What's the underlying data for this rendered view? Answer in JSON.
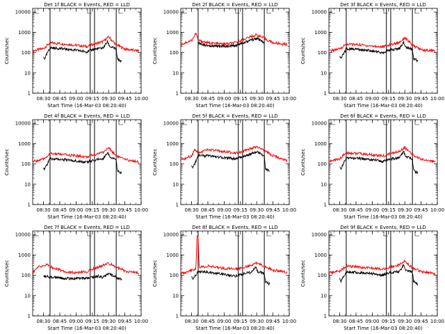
{
  "chart_data": [
    {
      "type": "line",
      "title": "Det 1f BLACK = Events, RED = LLD",
      "xlabel": "Start Time (16-Mar-03 08:20:40)",
      "ylabel": "Counts/sec",
      "xlim": [
        "08:20",
        "10:00"
      ],
      "ylim": [
        1,
        15000
      ],
      "yscale": "log",
      "x_ticks": [
        "08:30",
        "08:45",
        "09:00",
        "09:15",
        "09:30",
        "09:45",
        "10:00"
      ],
      "y_ticks": [
        "1",
        "10",
        "100",
        "1000",
        "10000"
      ],
      "vlines": [
        "08:36",
        "09:13",
        "09:17",
        "09:37"
      ],
      "series": [
        {
          "color": "#ff0000",
          "x": [
            "08:20",
            "08:30",
            "08:36",
            "08:45",
            "09:00",
            "09:10",
            "09:15",
            "09:25",
            "09:30",
            "09:33",
            "09:37",
            "09:45",
            "09:58"
          ],
          "values": [
            120,
            160,
            300,
            280,
            230,
            200,
            250,
            350,
            600,
            400,
            250,
            150,
            120
          ]
        },
        {
          "color": "#000000",
          "x": [
            "08:30",
            "08:31",
            "08:36",
            "08:45",
            "09:00",
            "09:10",
            "09:15",
            "09:25",
            "09:29",
            "09:31",
            "09:37",
            "09:38",
            "09:42"
          ],
          "values": [
            60,
            50,
            170,
            160,
            130,
            110,
            140,
            170,
            350,
            200,
            150,
            50,
            35
          ]
        }
      ]
    },
    {
      "type": "line",
      "title": "Det 2f BLACK = Events, RED = LLD",
      "xlabel": "Start Time (16-Mar-03 08:20:40)",
      "ylabel": "Counts/sec",
      "xlim": [
        "08:20",
        "10:00"
      ],
      "ylim": [
        1,
        15000
      ],
      "yscale": "log",
      "x_ticks": [
        "08:30",
        "08:45",
        "09:00",
        "09:15",
        "09:30",
        "09:45",
        "10:00"
      ],
      "y_ticks": [
        "1",
        "10",
        "100",
        "1000",
        "10000"
      ],
      "vlines": [
        "08:36",
        "09:13",
        "09:17",
        "09:37"
      ],
      "series": [
        {
          "color": "#ff0000",
          "x": [
            "08:20",
            "08:30",
            "08:34",
            "08:36",
            "08:45",
            "09:00",
            "09:10",
            "09:20",
            "09:30",
            "09:37",
            "09:45",
            "09:58"
          ],
          "values": [
            250,
            400,
            900,
            400,
            300,
            260,
            300,
            500,
            750,
            500,
            300,
            250
          ]
        },
        {
          "color": "#000000",
          "x": [
            "08:36",
            "08:45",
            "09:00",
            "09:10",
            "09:20",
            "09:30",
            "09:37"
          ],
          "values": [
            300,
            220,
            200,
            220,
            350,
            500,
            300
          ]
        }
      ]
    },
    {
      "type": "line",
      "title": "Det 3f BLACK = Events, RED = LLD",
      "xlabel": "Start Time (16-Mar-03 08:20:40)",
      "ylabel": "Counts/sec",
      "xlim": [
        "08:20",
        "10:00"
      ],
      "ylim": [
        1,
        15000
      ],
      "yscale": "log",
      "x_ticks": [
        "08:30",
        "08:45",
        "09:00",
        "09:15",
        "09:30",
        "09:45",
        "10:00"
      ],
      "y_ticks": [
        "1",
        "10",
        "100",
        "1000",
        "10000"
      ],
      "vlines": [
        "08:36",
        "09:13",
        "09:17",
        "09:37"
      ],
      "series": [
        {
          "color": "#ff0000",
          "x": [
            "08:20",
            "08:30",
            "08:36",
            "08:45",
            "09:00",
            "09:10",
            "09:15",
            "09:25",
            "09:30",
            "09:33",
            "09:37",
            "09:45",
            "09:58"
          ],
          "values": [
            120,
            150,
            260,
            250,
            210,
            190,
            230,
            320,
            550,
            380,
            230,
            140,
            120
          ]
        },
        {
          "color": "#000000",
          "x": [
            "08:30",
            "08:31",
            "08:36",
            "08:45",
            "09:00",
            "09:10",
            "09:15",
            "09:25",
            "09:29",
            "09:31",
            "09:37",
            "09:38",
            "09:42"
          ],
          "values": [
            60,
            50,
            150,
            150,
            120,
            100,
            130,
            160,
            330,
            190,
            140,
            50,
            40
          ]
        }
      ]
    },
    {
      "type": "line",
      "title": "Det 4f BLACK = Events, RED = LLD",
      "xlabel": "Start Time (16-Mar-03 08:20:40)",
      "ylabel": "Counts/sec",
      "xlim": [
        "08:20",
        "10:00"
      ],
      "ylim": [
        1,
        15000
      ],
      "yscale": "log",
      "x_ticks": [
        "08:30",
        "08:45",
        "09:00",
        "09:15",
        "09:30",
        "09:45",
        "10:00"
      ],
      "y_ticks": [
        "1",
        "10",
        "100",
        "1000",
        "10000"
      ],
      "vlines": [
        "08:36",
        "09:13",
        "09:17",
        "09:37"
      ],
      "series": [
        {
          "color": "#ff0000",
          "x": [
            "08:20",
            "08:30",
            "08:36",
            "08:45",
            "09:00",
            "09:10",
            "09:15",
            "09:25",
            "09:30",
            "09:33",
            "09:37",
            "09:45",
            "09:58"
          ],
          "values": [
            130,
            170,
            320,
            300,
            250,
            220,
            270,
            380,
            620,
            420,
            260,
            160,
            130
          ]
        },
        {
          "color": "#000000",
          "x": [
            "08:30",
            "08:31",
            "08:36",
            "08:45",
            "09:00",
            "09:10",
            "09:15",
            "09:25",
            "09:29",
            "09:31",
            "09:37",
            "09:38",
            "09:42"
          ],
          "values": [
            70,
            55,
            180,
            170,
            140,
            120,
            150,
            180,
            370,
            210,
            160,
            50,
            35
          ]
        }
      ]
    },
    {
      "type": "line",
      "title": "Det 5f BLACK = Events, RED = LLD",
      "xlabel": "Start Time (16-Mar-03 08:20:40)",
      "ylabel": "Counts/sec",
      "xlim": [
        "08:20",
        "10:00"
      ],
      "ylim": [
        1,
        15000
      ],
      "yscale": "log",
      "x_ticks": [
        "08:30",
        "08:45",
        "09:00",
        "09:15",
        "09:30",
        "09:45",
        "10:00"
      ],
      "y_ticks": [
        "1",
        "10",
        "100",
        "1000",
        "10000"
      ],
      "vlines": [
        "08:36",
        "09:13",
        "09:17",
        "09:37"
      ],
      "series": [
        {
          "color": "#ff0000",
          "x": [
            "08:20",
            "08:30",
            "08:33",
            "08:36",
            "08:45",
            "09:00",
            "09:10",
            "09:20",
            "09:30",
            "09:37",
            "09:45",
            "09:58"
          ],
          "values": [
            150,
            250,
            550,
            350,
            500,
            400,
            350,
            450,
            700,
            450,
            250,
            150
          ]
        },
        {
          "color": "#000000",
          "x": [
            "08:30",
            "08:31",
            "08:36",
            "08:45",
            "09:00",
            "09:10",
            "09:20",
            "09:30",
            "09:37",
            "09:38",
            "09:42"
          ],
          "values": [
            90,
            60,
            250,
            250,
            200,
            180,
            250,
            400,
            250,
            60,
            40
          ]
        }
      ]
    },
    {
      "type": "line",
      "title": "Det 6f BLACK = Events, RED = LLD",
      "xlabel": "Start Time (16-Mar-03 08:20:40)",
      "ylabel": "Counts/sec",
      "xlim": [
        "08:20",
        "10:00"
      ],
      "ylim": [
        1,
        15000
      ],
      "yscale": "log",
      "x_ticks": [
        "08:30",
        "08:45",
        "09:00",
        "09:15",
        "09:30",
        "09:45",
        "10:00"
      ],
      "y_ticks": [
        "1",
        "10",
        "100",
        "1000",
        "10000"
      ],
      "vlines": [
        "08:36",
        "09:13",
        "09:17",
        "09:37"
      ],
      "series": [
        {
          "color": "#ff0000",
          "x": [
            "08:20",
            "08:30",
            "08:36",
            "08:45",
            "09:00",
            "09:10",
            "09:15",
            "09:25",
            "09:30",
            "09:33",
            "09:37",
            "09:45",
            "09:58"
          ],
          "values": [
            130,
            180,
            350,
            330,
            280,
            240,
            300,
            420,
            650,
            450,
            280,
            170,
            130
          ]
        },
        {
          "color": "#000000",
          "x": [
            "08:30",
            "08:31",
            "08:36",
            "08:45",
            "09:00",
            "09:10",
            "09:15",
            "09:25",
            "09:29",
            "09:31",
            "09:37",
            "09:38",
            "09:42"
          ],
          "values": [
            70,
            55,
            200,
            190,
            160,
            130,
            170,
            200,
            400,
            230,
            180,
            50,
            35
          ]
        }
      ]
    },
    {
      "type": "line",
      "title": "Det 7f BLACK = Events, RED = LLD",
      "xlabel": "Start Time (16-Mar-03 08:20:40)",
      "ylabel": "Counts/sec",
      "xlim": [
        "08:20",
        "10:00"
      ],
      "ylim": [
        1,
        15000
      ],
      "yscale": "log",
      "x_ticks": [
        "08:30",
        "08:45",
        "09:00",
        "09:15",
        "09:30",
        "09:45",
        "10:00"
      ],
      "y_ticks": [
        "1",
        "10",
        "100",
        "1000",
        "10000"
      ],
      "vlines": [
        "08:36",
        "09:13",
        "09:17",
        "09:37"
      ],
      "series": [
        {
          "color": "#ff0000",
          "x": [
            "08:20",
            "08:25",
            "08:33",
            "08:40",
            "08:50",
            "09:00",
            "09:10",
            "09:20",
            "09:30",
            "09:35",
            "09:45",
            "09:58"
          ],
          "values": [
            140,
            250,
            330,
            220,
            150,
            130,
            150,
            250,
            380,
            300,
            160,
            130
          ]
        },
        {
          "color": "#000000",
          "x": [
            "08:30",
            "08:40",
            "08:50",
            "09:00",
            "09:10",
            "09:20",
            "09:25",
            "09:30",
            "09:35",
            "09:42"
          ],
          "values": [
            90,
            80,
            70,
            70,
            70,
            90,
            80,
            120,
            90,
            60
          ]
        }
      ]
    },
    {
      "type": "line",
      "title": "Det 8f BLACK = Events, RED = LLD",
      "xlabel": "Start Time (16-Mar-03 08:20:40)",
      "ylabel": "Counts/sec",
      "xlim": [
        "08:20",
        "10:00"
      ],
      "ylim": [
        1,
        15000
      ],
      "yscale": "log",
      "x_ticks": [
        "08:30",
        "08:45",
        "09:00",
        "09:15",
        "09:30",
        "09:45",
        "10:00"
      ],
      "y_ticks": [
        "1",
        "10",
        "100",
        "1000",
        "10000"
      ],
      "vlines": [
        "08:36",
        "09:13",
        "09:17",
        "09:37"
      ],
      "series": [
        {
          "color": "#ff0000",
          "x": [
            "08:20",
            "08:30",
            "08:34",
            "08:35",
            "08:36",
            "08:37",
            "08:45",
            "09:00",
            "09:10",
            "09:15",
            "09:25",
            "09:30",
            "09:37",
            "09:45",
            "09:58"
          ],
          "values": [
            120,
            180,
            220,
            9000,
            9000,
            250,
            280,
            220,
            200,
            230,
            300,
            400,
            280,
            180,
            140
          ]
        },
        {
          "color": "#000000",
          "x": [
            "08:30",
            "08:31",
            "08:36",
            "08:45",
            "09:00",
            "09:10",
            "09:15",
            "09:25",
            "09:29",
            "09:31",
            "09:37",
            "09:38",
            "09:42"
          ],
          "values": [
            80,
            60,
            150,
            140,
            110,
            90,
            110,
            140,
            250,
            150,
            120,
            50,
            35
          ]
        }
      ]
    },
    {
      "type": "line",
      "title": "Det 9f BLACK = Events, RED = LLD",
      "xlabel": "Start Time (16-Mar-03 08:20:40)",
      "ylabel": "Counts/sec",
      "xlim": [
        "08:20",
        "10:00"
      ],
      "ylim": [
        1,
        15000
      ],
      "yscale": "log",
      "x_ticks": [
        "08:30",
        "08:45",
        "09:00",
        "09:15",
        "09:30",
        "09:45",
        "10:00"
      ],
      "y_ticks": [
        "1",
        "10",
        "100",
        "1000",
        "10000"
      ],
      "vlines": [
        "08:36",
        "09:13",
        "09:17",
        "09:37"
      ],
      "series": [
        {
          "color": "#ff0000",
          "x": [
            "08:20",
            "08:30",
            "08:36",
            "08:45",
            "09:00",
            "09:10",
            "09:15",
            "09:25",
            "09:30",
            "09:33",
            "09:37",
            "09:45",
            "09:58"
          ],
          "values": [
            130,
            160,
            280,
            260,
            220,
            200,
            240,
            330,
            520,
            360,
            230,
            150,
            120
          ]
        },
        {
          "color": "#000000",
          "x": [
            "08:30",
            "08:31",
            "08:36",
            "08:45",
            "09:00",
            "09:10",
            "09:15",
            "09:25",
            "09:29",
            "09:31",
            "09:37",
            "09:38",
            "09:42"
          ],
          "values": [
            65,
            50,
            150,
            140,
            120,
            100,
            130,
            150,
            320,
            180,
            140,
            50,
            35
          ]
        }
      ]
    }
  ]
}
